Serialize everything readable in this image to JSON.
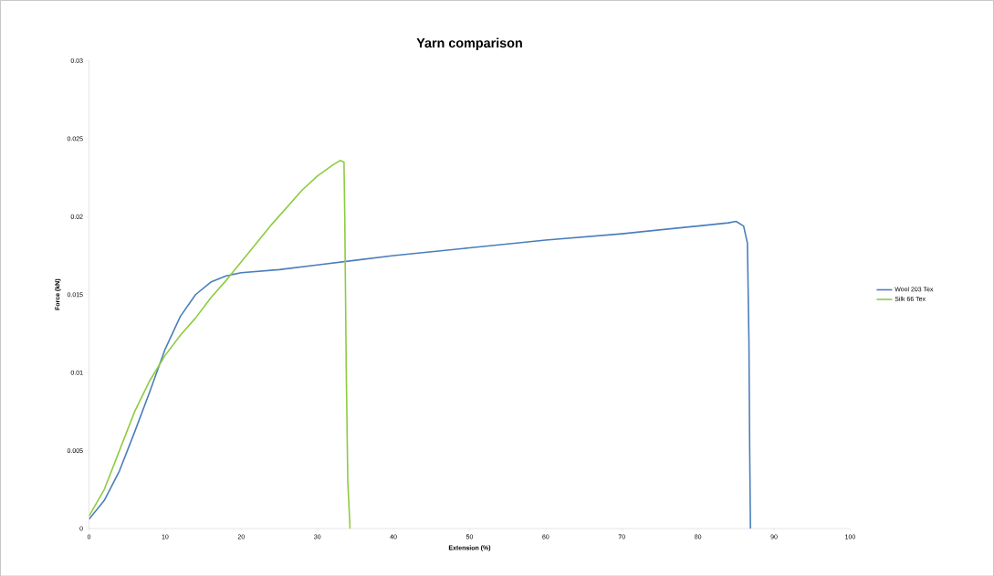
{
  "chart_data": {
    "type": "line",
    "title": "Yarn comparison",
    "xlabel": "Extension (%)",
    "ylabel": "Force (kN)",
    "xlim": [
      0,
      100
    ],
    "xticks": [
      0,
      10,
      20,
      30,
      40,
      50,
      60,
      70,
      80,
      90,
      100
    ],
    "ylim": [
      0,
      0.03
    ],
    "yticks": [
      0,
      0.005,
      0.01,
      0.015,
      0.02,
      0.025,
      0.03
    ],
    "grid": false,
    "legend": "right",
    "marker": "none",
    "line_style": "solid",
    "series": [
      {
        "name": "Wool 203 Tex",
        "color": "#4a7ebb",
        "x": [
          0,
          2,
          4,
          6,
          8,
          10,
          12,
          14,
          16,
          18,
          20,
          25,
          30,
          35,
          40,
          50,
          60,
          70,
          80,
          84,
          85,
          86,
          86.5,
          86.7,
          86.8,
          86.9
        ],
        "values": [
          0.0006,
          0.0018,
          0.0037,
          0.0062,
          0.0088,
          0.0115,
          0.0136,
          0.015,
          0.0158,
          0.0162,
          0.0164,
          0.0166,
          0.0169,
          0.0172,
          0.0175,
          0.018,
          0.0185,
          0.0189,
          0.0194,
          0.0196,
          0.0197,
          0.0194,
          0.0183,
          0.012,
          0.005,
          0
        ]
      },
      {
        "name": "Silk 66 Tex",
        "color": "#8ccc3e",
        "x": [
          0,
          2,
          4,
          6,
          8,
          10,
          12,
          14,
          16,
          18,
          20,
          22,
          24,
          26,
          28,
          30,
          32,
          33,
          33.5,
          33.6,
          33.8,
          34,
          34.3
        ],
        "values": [
          0.0008,
          0.0025,
          0.005,
          0.0075,
          0.0095,
          0.0111,
          0.0124,
          0.0135,
          0.0148,
          0.0159,
          0.0171,
          0.0183,
          0.0195,
          0.0206,
          0.0217,
          0.0226,
          0.0233,
          0.0236,
          0.0235,
          0.02,
          0.01,
          0.003,
          0
        ]
      }
    ]
  }
}
